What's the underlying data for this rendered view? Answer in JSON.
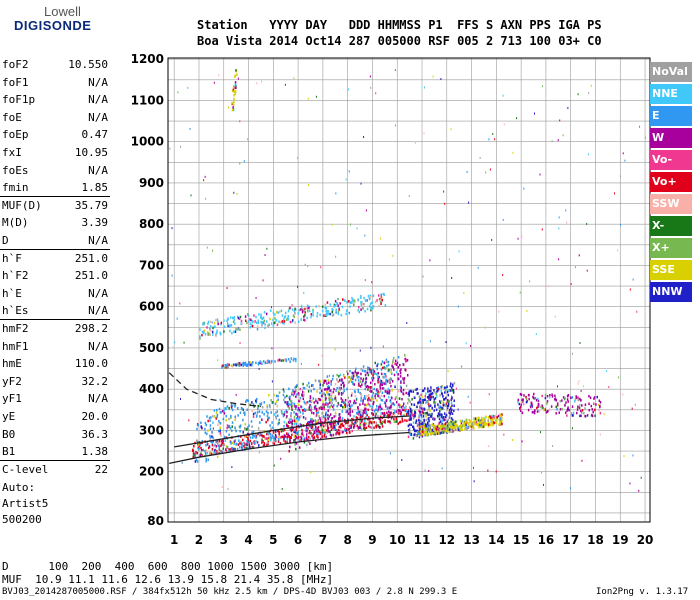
{
  "logo": {
    "brand_top": "Lowell",
    "brand_bottom": "DIGISONDE"
  },
  "header": {
    "line1": "Station   YYYY DAY   DDD HHMMSS P1  FFS S AXN PPS IGA PS",
    "line2": "Boa Vista 2014 Oct14 287 005000 RSF 005 2 713 100 03+ C0"
  },
  "params": [
    {
      "name": "foF2",
      "value": "10.550"
    },
    {
      "name": "foF1",
      "value": "N/A"
    },
    {
      "name": "foF1p",
      "value": "N/A"
    },
    {
      "name": "foE",
      "value": "N/A"
    },
    {
      "name": "foEp",
      "value": "0.47"
    },
    {
      "name": "fxI",
      "value": "10.95"
    },
    {
      "name": "foEs",
      "value": "N/A"
    },
    {
      "name": "fmin",
      "value": "1.85"
    },
    {
      "name": "MUF(D)",
      "value": "35.79"
    },
    {
      "name": "M(D)",
      "value": "3.39"
    },
    {
      "name": "D",
      "value": "N/A"
    },
    {
      "name": "h`F",
      "value": "251.0"
    },
    {
      "name": "h`F2",
      "value": "251.0"
    },
    {
      "name": "h`E",
      "value": "N/A"
    },
    {
      "name": "h`Es",
      "value": "N/A"
    },
    {
      "name": "hmF2",
      "value": "298.2"
    },
    {
      "name": "hmF1",
      "value": "N/A"
    },
    {
      "name": "hmE",
      "value": "110.0"
    },
    {
      "name": "yF2",
      "value": "32.2"
    },
    {
      "name": "yF1",
      "value": "N/A"
    },
    {
      "name": "yE",
      "value": "20.0"
    },
    {
      "name": "B0",
      "value": "36.3"
    },
    {
      "name": "B1",
      "value": "1.38"
    },
    {
      "name": "C-level",
      "value": "22"
    }
  ],
  "auto": {
    "line1": "Auto:",
    "line2": "Artist5",
    "line3": "500200"
  },
  "footer": {
    "d_line": "D      100  200  400  600  800 1000 1500 3000 [km]",
    "muf_line": "MUF  10.9 11.1 11.6 12.6 13.9 15.8 21.4 35.8 [MHz]",
    "file_line": "BVJ03_2014287005000.RSF / 384fx512h 50 kHz 2.5 km / DPS-4D BVJ03 003 / 2.8 N 299.3 E",
    "version": "Ion2Png v. 1.3.17"
  },
  "legend": [
    {
      "label": "NoVal",
      "color": "#a0a0a0"
    },
    {
      "label": "NNE",
      "color": "#40c8f8"
    },
    {
      "label": "E",
      "color": "#3098f0"
    },
    {
      "label": "W",
      "color": "#a8009c"
    },
    {
      "label": "Vo-",
      "color": "#f03890"
    },
    {
      "label": "Vo+",
      "color": "#e0001c"
    },
    {
      "label": "SSW",
      "color": "#f8b0a8"
    },
    {
      "label": "X-",
      "color": "#187818"
    },
    {
      "label": "X+",
      "color": "#78b850"
    },
    {
      "label": "SSE",
      "color": "#d8d000"
    },
    {
      "label": "NNW",
      "color": "#2020c8"
    }
  ],
  "chart_data": {
    "type": "scatter",
    "xlabel": "",
    "ylabel": "",
    "xlim": [
      0.75,
      20.2
    ],
    "ylim": [
      78,
      1203
    ],
    "x_ticks": [
      1,
      2,
      3,
      4,
      5,
      6,
      7,
      8,
      9,
      10,
      11,
      12,
      13,
      14,
      15,
      16,
      17,
      18,
      19,
      20
    ],
    "y_ticks": [
      80,
      200,
      300,
      400,
      500,
      600,
      700,
      800,
      900,
      1000,
      1100,
      1200
    ],
    "grid": true,
    "clusters": [
      {
        "name": "F-trace main",
        "color_key": "Vo+",
        "x_range": [
          1.7,
          10.6
        ],
        "y_start": 255,
        "y_end": 340,
        "spread": 18,
        "count": 500
      },
      {
        "name": "F-trace scatter",
        "color_key": "E",
        "x_range": [
          1.8,
          9.8
        ],
        "y_start": 280,
        "y_end": 420,
        "spread": 60,
        "count": 700
      },
      {
        "name": "spread F",
        "color_key": "W",
        "x_range": [
          5.5,
          10.4
        ],
        "y_start": 320,
        "y_end": 420,
        "spread": 70,
        "count": 500
      },
      {
        "name": "spread F 11",
        "color_key": "NNW",
        "x_range": [
          10.4,
          12.3
        ],
        "y_start": 340,
        "y_end": 360,
        "spread": 60,
        "count": 400
      },
      {
        "name": "X trace",
        "color_key": "SSE",
        "x_range": [
          10.8,
          14.2
        ],
        "y_start": 300,
        "y_end": 330,
        "spread": 12,
        "count": 350
      },
      {
        "name": "oblique",
        "color_key": "W",
        "x_range": [
          14.8,
          18.2
        ],
        "y_start": 370,
        "y_end": 360,
        "spread": 25,
        "count": 160
      },
      {
        "name": "multi-hop",
        "color_key": "NNE",
        "x_range": [
          2.0,
          9.5
        ],
        "y_start": 545,
        "y_end": 620,
        "spread": 20,
        "count": 320
      },
      {
        "name": "echo 470",
        "color_key": "E",
        "x_range": [
          2.9,
          5.9
        ],
        "y_start": 458,
        "y_end": 475,
        "spread": 4,
        "count": 90
      },
      {
        "name": "spur 3.4",
        "color_key": "SSE",
        "x_range": [
          3.3,
          3.5
        ],
        "y_start": 1080,
        "y_end": 1170,
        "spread": 30,
        "count": 30
      }
    ],
    "model_curves": [
      {
        "name": "F-profile upper",
        "style": "solid",
        "points": [
          [
            1,
            260
          ],
          [
            3,
            280
          ],
          [
            5,
            300
          ],
          [
            7,
            318
          ],
          [
            9,
            330
          ],
          [
            10.5,
            335
          ]
        ]
      },
      {
        "name": "F-profile lower",
        "style": "solid",
        "points": [
          [
            0.8,
            220
          ],
          [
            2,
            235
          ],
          [
            4,
            255
          ],
          [
            6,
            272
          ],
          [
            8,
            285
          ],
          [
            10.5,
            295
          ]
        ]
      },
      {
        "name": "F-profile dashed",
        "style": "dashed",
        "points": [
          [
            0.8,
            440
          ],
          [
            1.5,
            400
          ],
          [
            2.5,
            375
          ],
          [
            3.5,
            365
          ],
          [
            4.5,
            358
          ]
        ]
      }
    ]
  }
}
